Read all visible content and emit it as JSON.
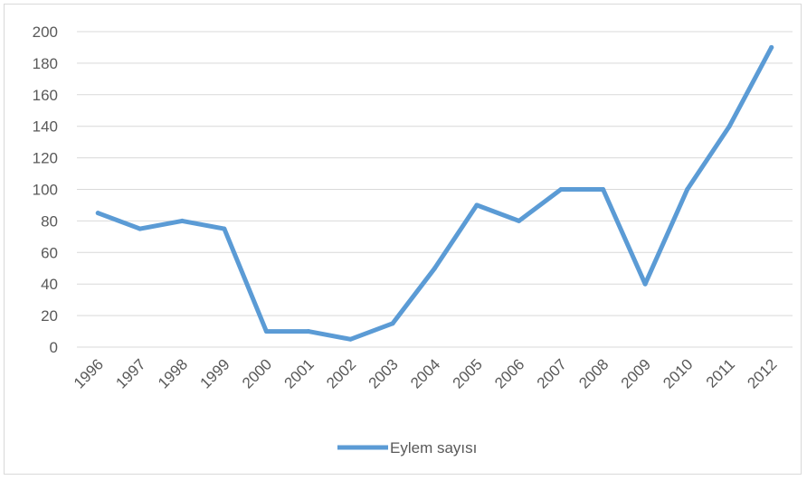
{
  "chart_data": {
    "type": "line",
    "title": "",
    "xlabel": "",
    "ylabel": "",
    "categories": [
      "1996",
      "1997",
      "1998",
      "1999",
      "2000",
      "2001",
      "2002",
      "2003",
      "2004",
      "2005",
      "2006",
      "2007",
      "2008",
      "2009",
      "2010",
      "2011",
      "2012"
    ],
    "series": [
      {
        "name": "Eylem sayısı",
        "color": "#5b9bd5",
        "values": [
          85,
          75,
          80,
          75,
          10,
          10,
          5,
          15,
          50,
          90,
          80,
          100,
          100,
          40,
          100,
          140,
          190
        ]
      }
    ],
    "ylim": [
      0,
      200
    ],
    "yticks": [
      0,
      20,
      40,
      60,
      80,
      100,
      120,
      140,
      160,
      180,
      200
    ],
    "grid": true,
    "legend_position": "bottom"
  }
}
